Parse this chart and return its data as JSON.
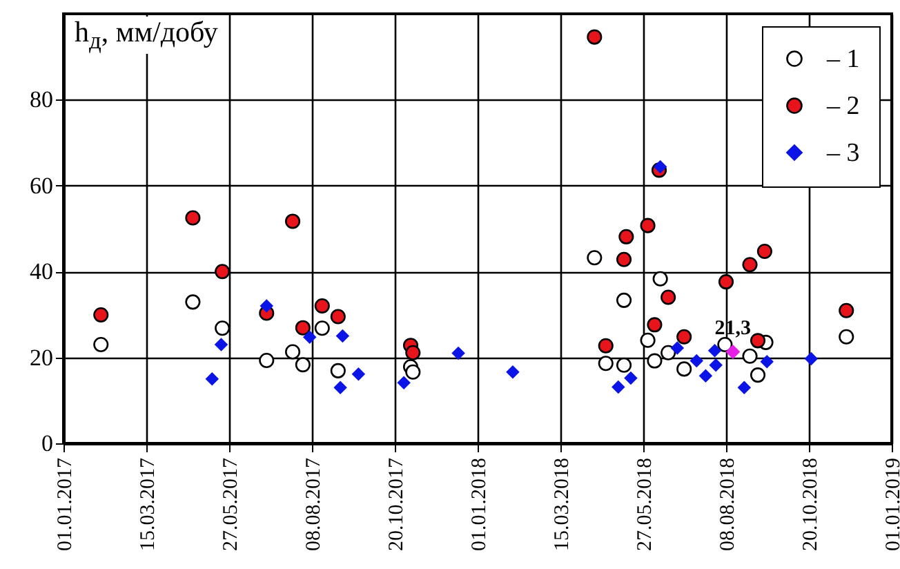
{
  "chart_data": {
    "type": "scatter",
    "ylabel": "h$_{д}$, мм/добу",
    "xlim": [
      "2017-01-01",
      "2019-01-01"
    ],
    "xticks": [
      {
        "value": "2017-01-01",
        "label": "01.01.2017"
      },
      {
        "value": "2017-03-15",
        "label": "15.03.2017"
      },
      {
        "value": "2017-05-27",
        "label": "27.05.2017"
      },
      {
        "value": "2017-08-08",
        "label": "08.08.2017"
      },
      {
        "value": "2017-10-20",
        "label": "20.10.2017"
      },
      {
        "value": "2018-01-01",
        "label": "01.01.2018"
      },
      {
        "value": "2018-03-15",
        "label": "15.03.2018"
      },
      {
        "value": "2018-05-27",
        "label": "27.05.2018"
      },
      {
        "value": "2018-08-08",
        "label": "08.08.2018"
      },
      {
        "value": "2018-10-20",
        "label": "20.10.2018"
      },
      {
        "value": "2019-01-01",
        "label": "01.01.2019"
      }
    ],
    "ylim": [
      0,
      100
    ],
    "yticks": [
      0,
      20,
      40,
      60,
      80
    ],
    "grid": true,
    "legend": "top right",
    "series": [
      {
        "name": "– 1",
        "color": "#ffffff",
        "marker": "circle",
        "x": [
          "2017-02-03",
          "2017-04-25",
          "2017-05-21",
          "2017-06-29",
          "2017-07-22",
          "2017-07-31",
          "2017-08-17",
          "2017-08-31",
          "2017-11-03",
          "2017-11-05",
          "2018-04-14",
          "2018-04-24",
          "2018-05-10",
          "2018-05-10",
          "2018-05-31",
          "2018-06-06",
          "2018-06-11",
          "2018-06-18",
          "2018-07-02",
          "2018-08-07",
          "2018-08-29",
          "2018-09-05",
          "2018-09-12",
          "2018-11-22"
        ],
        "values": [
          23.0,
          32.9,
          26.8,
          19.3,
          21.3,
          18.3,
          26.8,
          16.9,
          17.8,
          16.6,
          43.2,
          18.6,
          33.3,
          18.2,
          24.0,
          19.2,
          38.3,
          21.1,
          17.3,
          23.0,
          20.3,
          15.9,
          23.5,
          24.8
        ]
      },
      {
        "name": "– 2",
        "color": "#e8141b",
        "marker": "circle",
        "x": [
          "2017-02-03",
          "2017-04-25",
          "2017-05-21",
          "2017-06-29",
          "2017-07-22",
          "2017-07-31",
          "2017-08-17",
          "2017-08-31",
          "2017-11-03",
          "2017-11-05",
          "2018-04-14",
          "2018-04-24",
          "2018-05-12",
          "2018-05-10",
          "2018-05-31",
          "2018-06-10",
          "2018-06-18",
          "2018-06-06",
          "2018-07-02",
          "2018-08-08",
          "2018-08-29",
          "2018-09-11",
          "2018-09-05",
          "2018-11-22"
        ],
        "values": [
          29.9,
          52.5,
          40.0,
          30.3,
          51.7,
          26.9,
          32.0,
          29.5,
          22.8,
          21.1,
          94.6,
          22.7,
          48.1,
          42.8,
          50.7,
          63.6,
          34.0,
          27.6,
          24.8,
          37.6,
          41.6,
          44.7,
          23.9,
          30.9
        ]
      },
      {
        "name": "– 3",
        "color": "#0a14e6",
        "marker": "diamond",
        "x": [
          "2017-05-12",
          "2017-05-20",
          "2017-06-29",
          "2017-08-06",
          "2017-09-02",
          "2017-09-04",
          "2017-09-18",
          "2017-10-28",
          "2017-12-15",
          "2018-02-01",
          "2018-05-05",
          "2018-05-16",
          "2018-06-11",
          "2018-06-26",
          "2018-07-13",
          "2018-07-21",
          "2018-07-29",
          "2018-07-30",
          "2018-08-24",
          "2018-09-13",
          "2018-10-22"
        ],
        "values": [
          15.0,
          23.0,
          32.0,
          24.7,
          13.0,
          25.0,
          16.1,
          14.1,
          21.0,
          16.6,
          13.1,
          15.2,
          64.4,
          22.2,
          19.2,
          15.7,
          21.6,
          18.2,
          13.0,
          19.0,
          19.7
        ]
      },
      {
        "color": "#e61ee6",
        "marker": "diamond",
        "x": [
          "2018-08-14"
        ],
        "values": [
          21.3
        ],
        "value_labels": [
          "21,3"
        ]
      }
    ]
  }
}
